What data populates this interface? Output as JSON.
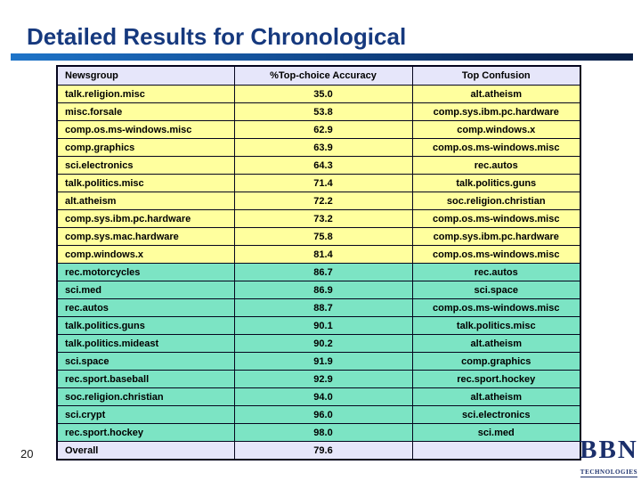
{
  "slide": {
    "title": "Detailed Results for Chronological",
    "page_number": "20"
  },
  "logo": {
    "name": "BBN",
    "tagline": "TECHNOLOGIES"
  },
  "table": {
    "headers": [
      "Newsgroup",
      "%Top-choice Accuracy",
      "Top Confusion"
    ],
    "rows": [
      {
        "newsgroup": "talk.religion.misc",
        "accuracy": "35.0",
        "confusion": "alt.atheism",
        "band": "yellow"
      },
      {
        "newsgroup": "misc.forsale",
        "accuracy": "53.8",
        "confusion": "comp.sys.ibm.pc.hardware",
        "band": "yellow"
      },
      {
        "newsgroup": "comp.os.ms-windows.misc",
        "accuracy": "62.9",
        "confusion": "comp.windows.x",
        "band": "yellow"
      },
      {
        "newsgroup": "comp.graphics",
        "accuracy": "63.9",
        "confusion": "comp.os.ms-windows.misc",
        "band": "yellow"
      },
      {
        "newsgroup": "sci.electronics",
        "accuracy": "64.3",
        "confusion": "rec.autos",
        "band": "yellow"
      },
      {
        "newsgroup": "talk.politics.misc",
        "accuracy": "71.4",
        "confusion": "talk.politics.guns",
        "band": "yellow"
      },
      {
        "newsgroup": "alt.atheism",
        "accuracy": "72.2",
        "confusion": "soc.religion.christian",
        "band": "yellow"
      },
      {
        "newsgroup": "comp.sys.ibm.pc.hardware",
        "accuracy": "73.2",
        "confusion": "comp.os.ms-windows.misc",
        "band": "yellow"
      },
      {
        "newsgroup": "comp.sys.mac.hardware",
        "accuracy": "75.8",
        "confusion": "comp.sys.ibm.pc.hardware",
        "band": "yellow"
      },
      {
        "newsgroup": "comp.windows.x",
        "accuracy": "81.4",
        "confusion": "comp.os.ms-windows.misc",
        "band": "yellow"
      },
      {
        "newsgroup": "rec.motorcycles",
        "accuracy": "86.7",
        "confusion": "rec.autos",
        "band": "cyan"
      },
      {
        "newsgroup": "sci.med",
        "accuracy": "86.9",
        "confusion": "sci.space",
        "band": "cyan"
      },
      {
        "newsgroup": "rec.autos",
        "accuracy": "88.7",
        "confusion": "comp.os.ms-windows.misc",
        "band": "cyan"
      },
      {
        "newsgroup": "talk.politics.guns",
        "accuracy": "90.1",
        "confusion": "talk.politics.misc",
        "band": "cyan"
      },
      {
        "newsgroup": "talk.politics.mideast",
        "accuracy": "90.2",
        "confusion": "alt.atheism",
        "band": "cyan"
      },
      {
        "newsgroup": "sci.space",
        "accuracy": "91.9",
        "confusion": "comp.graphics",
        "band": "cyan"
      },
      {
        "newsgroup": "rec.sport.baseball",
        "accuracy": "92.9",
        "confusion": "rec.sport.hockey",
        "band": "cyan"
      },
      {
        "newsgroup": "soc.religion.christian",
        "accuracy": "94.0",
        "confusion": "alt.atheism",
        "band": "cyan"
      },
      {
        "newsgroup": "sci.crypt",
        "accuracy": "96.0",
        "confusion": "sci.electronics",
        "band": "cyan"
      },
      {
        "newsgroup": "rec.sport.hockey",
        "accuracy": "98.0",
        "confusion": "sci.med",
        "band": "cyan"
      }
    ],
    "overall": {
      "label": "Overall",
      "accuracy": "79.6",
      "confusion": ""
    }
  },
  "colors": {
    "band_yellow": "#FFFF9E",
    "band_cyan": "#7CE4C4",
    "header_bg": "#E6E6FA",
    "title_text": "#16397E",
    "bar_gradient_start": "#1E74C8",
    "bar_gradient_end": "#081F46",
    "logo_navy": "#1B2F6B",
    "table_border": "#05051E"
  }
}
